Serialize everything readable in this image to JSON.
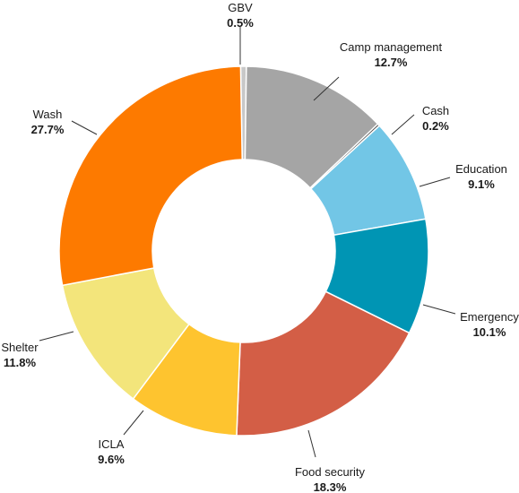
{
  "chart_data": {
    "type": "pie",
    "donut": true,
    "unit": "%",
    "slices": [
      {
        "label": "GBV",
        "value": 0.5,
        "display": "0.5%",
        "color": "#c8c8c8"
      },
      {
        "label": "Camp management",
        "value": 12.7,
        "display": "12.7%",
        "color": "#a5a5a5"
      },
      {
        "label": "Cash",
        "value": 0.2,
        "display": "0.2%",
        "color": "#555555"
      },
      {
        "label": "Education",
        "value": 9.1,
        "display": "9.1%",
        "color": "#72c6e6"
      },
      {
        "label": "Emergency",
        "value": 10.1,
        "display": "10.1%",
        "color": "#0095b4"
      },
      {
        "label": "Food security",
        "value": 18.3,
        "display": "18.3%",
        "color": "#d35e46"
      },
      {
        "label": "ICLA",
        "value": 9.6,
        "display": "9.6%",
        "color": "#fec42f"
      },
      {
        "label": "Shelter",
        "value": 11.8,
        "display": "11.8%",
        "color": "#f3e57b"
      },
      {
        "label": "Wash",
        "value": 27.7,
        "display": "27.7%",
        "color": "#fd7a00"
      }
    ],
    "start_angle_deg": -1,
    "direction": "clockwise",
    "legend": "none"
  }
}
